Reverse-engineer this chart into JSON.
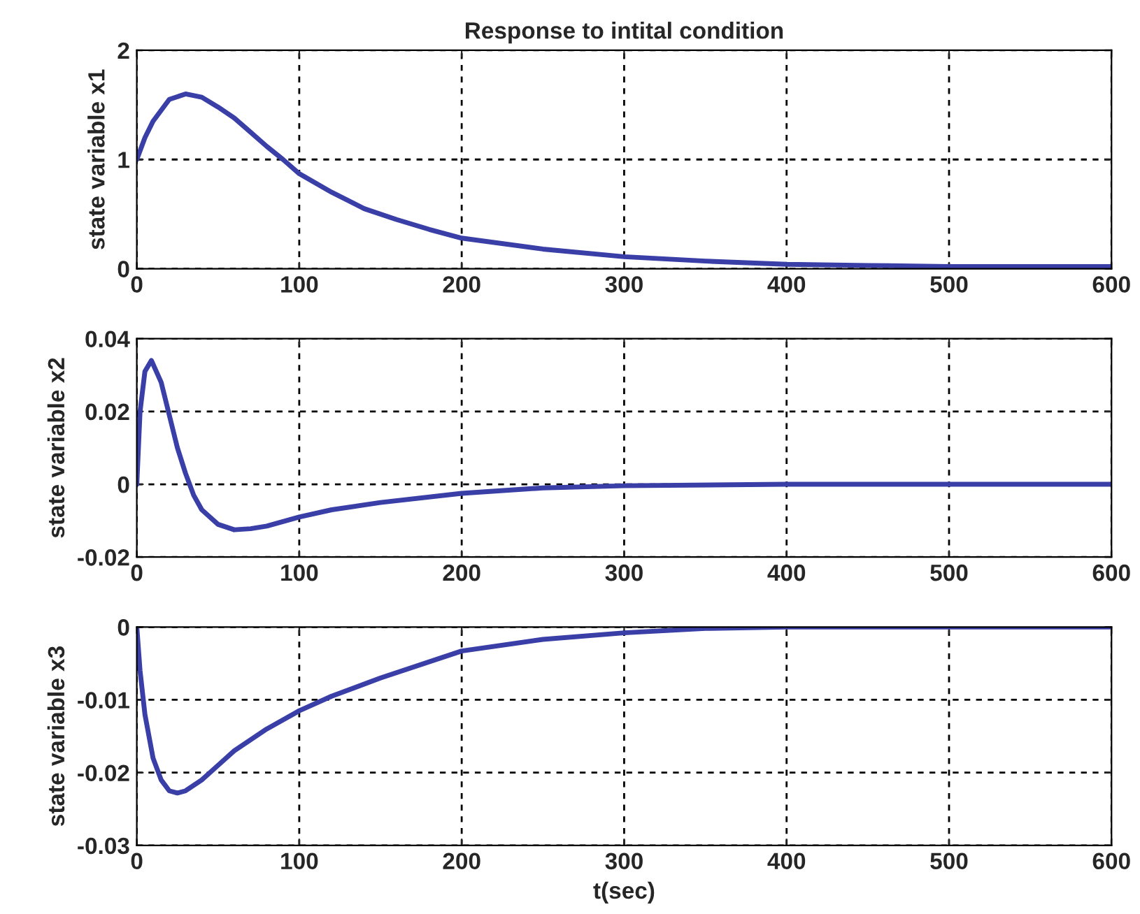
{
  "chart_data": [
    {
      "type": "line",
      "title": "Response to intital condition",
      "ylabel": "state variable x1",
      "xlim": [
        0,
        600
      ],
      "xticks": [
        0,
        100,
        200,
        300,
        400,
        500,
        600
      ],
      "ylim": [
        0,
        2
      ],
      "yticks": [
        0,
        1,
        2
      ],
      "grid": true,
      "line_style": "solid",
      "series": [
        {
          "color": "#3a3fa8",
          "x": [
            0,
            5,
            10,
            20,
            30,
            40,
            50,
            60,
            70,
            80,
            90,
            100,
            120,
            140,
            160,
            180,
            200,
            250,
            300,
            350,
            400,
            450,
            500,
            600
          ],
          "values": [
            1.0,
            1.2,
            1.35,
            1.55,
            1.6,
            1.57,
            1.48,
            1.38,
            1.25,
            1.12,
            1.0,
            0.87,
            0.7,
            0.55,
            0.45,
            0.36,
            0.28,
            0.18,
            0.11,
            0.07,
            0.04,
            0.03,
            0.02,
            0.02
          ]
        }
      ]
    },
    {
      "type": "line",
      "ylabel": "state variable x2",
      "xlim": [
        0,
        600
      ],
      "xticks": [
        0,
        100,
        200,
        300,
        400,
        500,
        600
      ],
      "ylim": [
        -0.02,
        0.04
      ],
      "yticks": [
        {
          "value": -0.02,
          "label": "-0.02"
        },
        0,
        0.02,
        0.04
      ],
      "grid": true,
      "line_style": "solid",
      "series": [
        {
          "color": "#3a3fa8",
          "x": [
            0,
            2,
            5,
            9,
            15,
            20,
            25,
            30,
            35,
            40,
            50,
            60,
            70,
            80,
            100,
            120,
            150,
            200,
            250,
            300,
            400,
            600
          ],
          "values": [
            0,
            0.02,
            0.031,
            0.034,
            0.028,
            0.019,
            0.01,
            0.003,
            -0.003,
            -0.007,
            -0.011,
            -0.0125,
            -0.0122,
            -0.0115,
            -0.009,
            -0.007,
            -0.005,
            -0.0025,
            -0.001,
            -0.0004,
            0,
            0
          ]
        }
      ]
    },
    {
      "type": "line",
      "xlabel": "t(sec)",
      "ylabel": "state variable x3",
      "xlim": [
        0,
        600
      ],
      "xticks": [
        0,
        100,
        200,
        300,
        400,
        500,
        600
      ],
      "ylim": [
        -0.03,
        0
      ],
      "yticks": [
        {
          "value": -0.03,
          "label": "-0.03"
        },
        {
          "value": -0.02,
          "label": "-0.02"
        },
        {
          "value": -0.01,
          "label": "-0.01"
        },
        0
      ],
      "grid": true,
      "line_style": "solid",
      "series": [
        {
          "color": "#3a3fa8",
          "x": [
            0,
            2,
            5,
            10,
            15,
            20,
            25,
            30,
            40,
            50,
            60,
            80,
            100,
            120,
            150,
            200,
            250,
            300,
            350,
            400,
            600
          ],
          "values": [
            0,
            -0.006,
            -0.012,
            -0.018,
            -0.021,
            -0.0225,
            -0.0228,
            -0.0225,
            -0.021,
            -0.019,
            -0.017,
            -0.014,
            -0.0115,
            -0.0095,
            -0.007,
            -0.0033,
            -0.0017,
            -0.0008,
            -0.0002,
            0,
            0
          ]
        }
      ]
    }
  ]
}
